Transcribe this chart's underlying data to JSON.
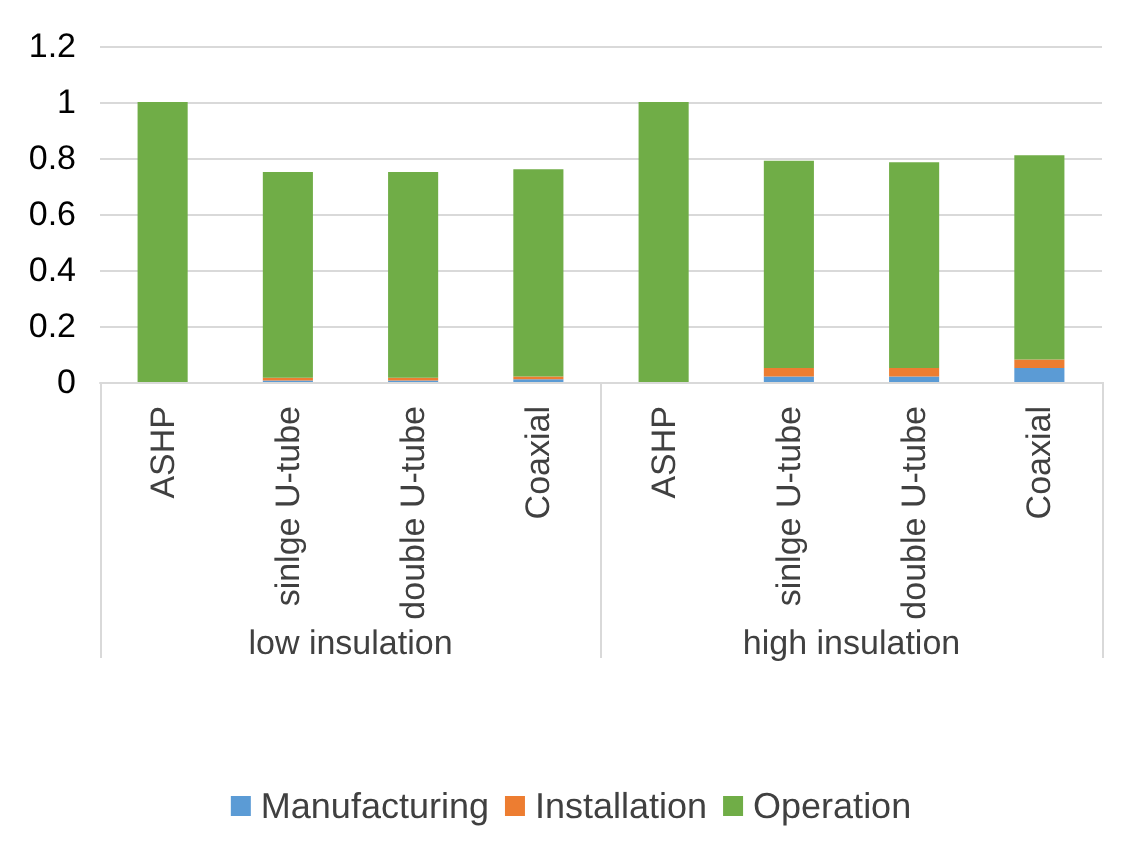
{
  "chart_data": {
    "type": "bar",
    "stacked": true,
    "categories": [
      "ASHP",
      "sinlge U-tube",
      "double U-tube",
      "Coaxial",
      "ASHP",
      "sinlge U-tube",
      "double U-tube",
      "Coaxial"
    ],
    "annotations": [
      "low insulation",
      "high insulation"
    ],
    "series": [
      {
        "name": "Manufacturing",
        "color": "#5b9bd5",
        "values": [
          0,
          0.005,
          0.005,
          0.01,
          0,
          0.02,
          0.02,
          0.05
        ]
      },
      {
        "name": "Installation",
        "color": "#ed7d31",
        "values": [
          0,
          0.01,
          0.01,
          0.01,
          0,
          0.03,
          0.03,
          0.03
        ]
      },
      {
        "name": "Operation",
        "color": "#70ad47",
        "values": [
          1,
          0.735,
          0.735,
          0.74,
          1,
          0.74,
          0.735,
          0.73
        ]
      }
    ],
    "ylim": [
      0,
      1.2
    ],
    "yticks": [
      0,
      0.2,
      0.4,
      0.6,
      0.8,
      1,
      1.2
    ],
    "grid": "y",
    "legend": "bottom"
  }
}
